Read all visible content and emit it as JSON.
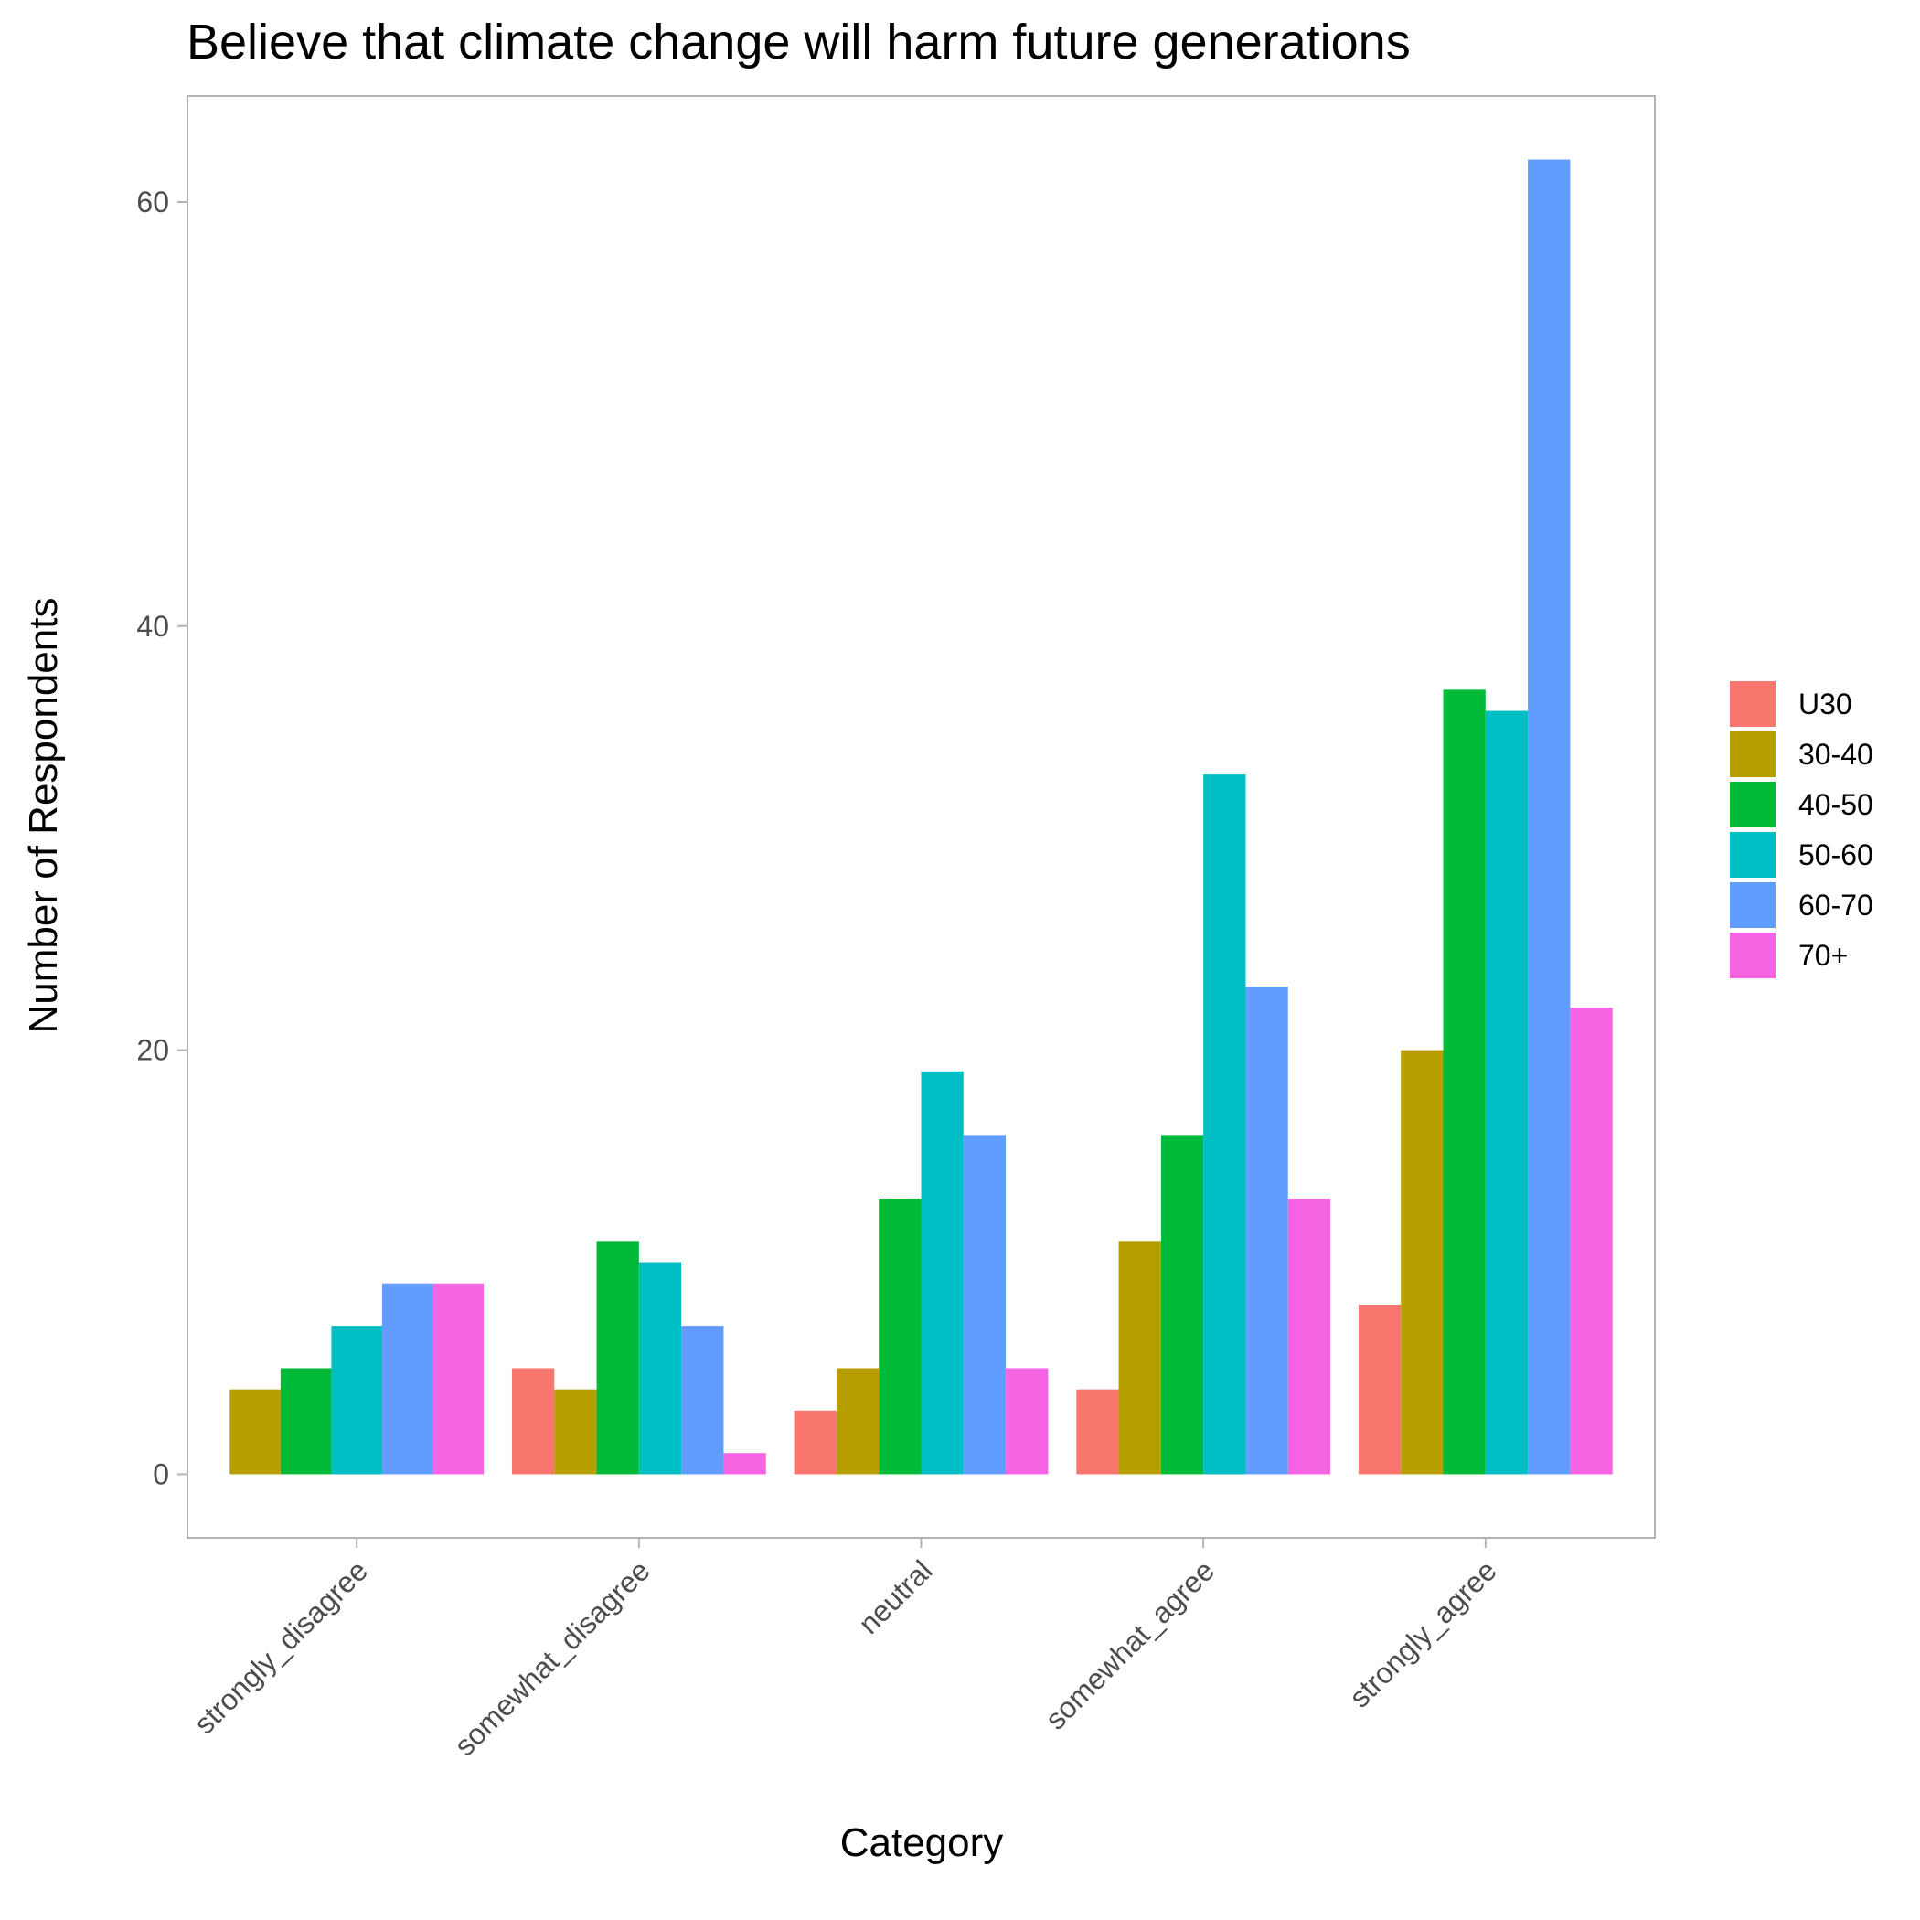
{
  "chart_data": {
    "type": "bar",
    "title": "Believe that climate change will harm future generations",
    "xlabel": "Category",
    "ylabel": "Number of Respondents",
    "categories": [
      "strongly_disagree",
      "somewhat_disagree",
      "neutral",
      "somewhat_agree",
      "strongly_agree"
    ],
    "series": [
      {
        "name": "U30",
        "color": "#F8766D",
        "values": [
          null,
          5,
          3,
          4,
          8
        ]
      },
      {
        "name": "30-40",
        "color": "#B79F00",
        "values": [
          4,
          4,
          5,
          11,
          20
        ]
      },
      {
        "name": "40-50",
        "color": "#00BA38",
        "values": [
          5,
          11,
          13,
          16,
          37
        ]
      },
      {
        "name": "50-60",
        "color": "#00BFC4",
        "values": [
          7,
          10,
          19,
          33,
          36
        ]
      },
      {
        "name": "60-70",
        "color": "#619CFF",
        "values": [
          9,
          7,
          16,
          23,
          62
        ]
      },
      {
        "name": "70+",
        "color": "#F564E3",
        "values": [
          9,
          1,
          5,
          13,
          22
        ]
      }
    ],
    "ylim": [
      -3,
      65
    ],
    "yticks": [
      0,
      20,
      40,
      60
    ],
    "grid": false,
    "legend_position": "right",
    "panel_border": true
  }
}
